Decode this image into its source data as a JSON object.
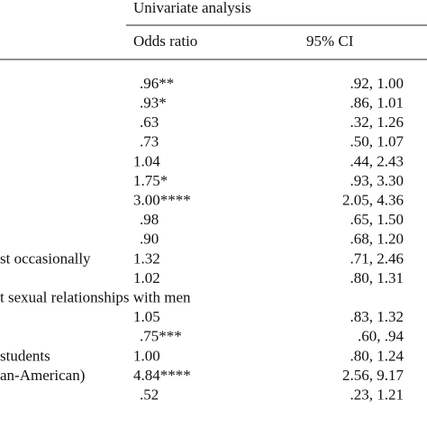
{
  "table": {
    "header": {
      "group": "Univariate analysis",
      "columns": [
        "Odds ratio",
        "95% CI"
      ]
    },
    "rows": [
      {
        "odds": ".96**",
        "ci": ".92, 1.00"
      },
      {
        "odds": ".93*",
        "ci": ".86, 1.01"
      },
      {
        "odds": ".63",
        "ci": ".32, 1.26"
      },
      {
        "odds": ".73",
        "ci": ".50, 1.07"
      },
      {
        "odds": "1.04",
        "ci": ".44, 2.43"
      },
      {
        "odds": "1.75*",
        "ci": ".93, 3.30"
      },
      {
        "odds": "3.00****",
        "ci": "2.05, 4.36"
      },
      {
        "odds": ".98",
        "ci": ".65, 1.50"
      },
      {
        "odds": ".90",
        "ci": ".68, 1.20"
      },
      {
        "label": "st occasionally",
        "odds": "1.32",
        "ci": ".71, 2.46"
      },
      {
        "odds": "1.02",
        "ci": ".80, 1.31"
      },
      {
        "label": "t sexual relationships with men"
      },
      {
        "odds": "1.05",
        "ci": ".83, 1.32"
      },
      {
        "odds": ".75***",
        "ci": ".60, .94"
      },
      {
        "label": "students",
        "odds": "1.00",
        "ci": ".80, 1.24"
      },
      {
        "label": "an-American)",
        "odds": "4.84****",
        "ci": "2.56, 9.17"
      },
      {
        "odds": ".52",
        "ci": ".23, 1.21"
      }
    ]
  }
}
